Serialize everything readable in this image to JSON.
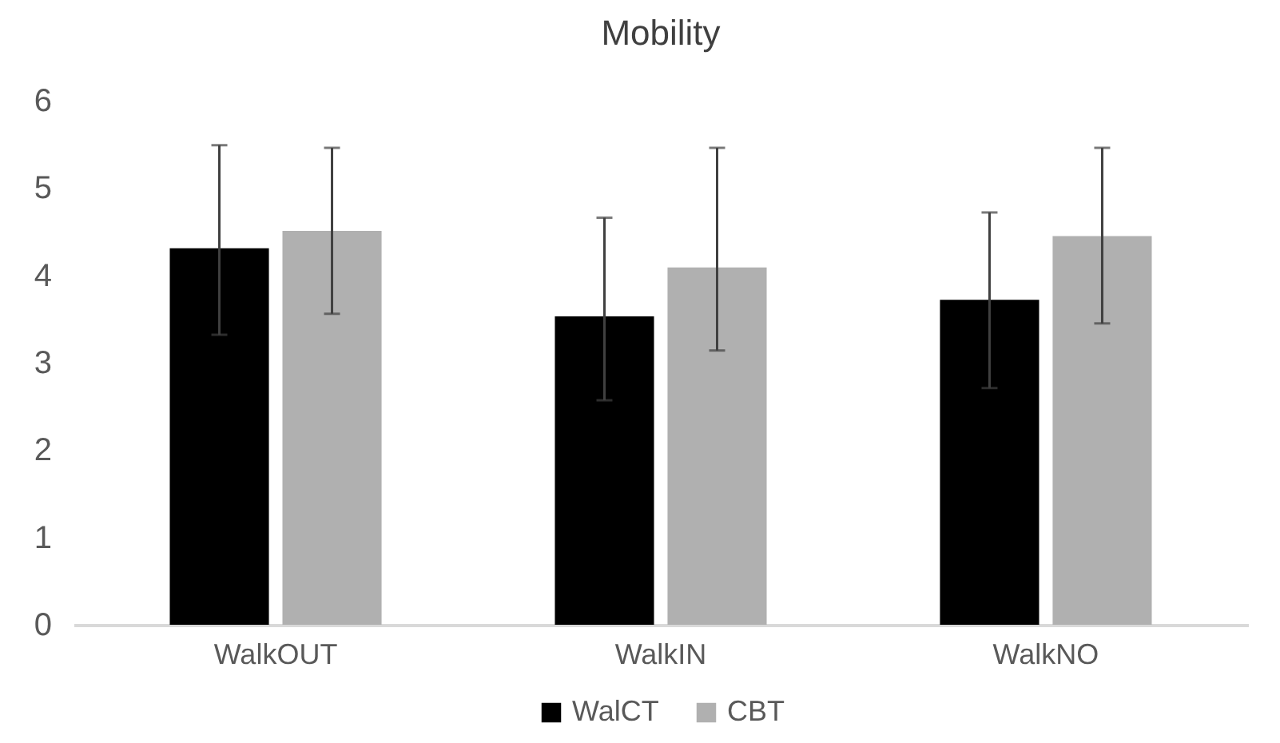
{
  "chart_data": {
    "type": "bar",
    "title": "Mobility",
    "categories": [
      "WalkOUT",
      "WalkIN",
      "WalkNO"
    ],
    "series": [
      {
        "name": "WalCT",
        "color": "#000000",
        "values": [
          4.31,
          3.53,
          3.72
        ],
        "errors": [
          [
            3.32,
            5.49
          ],
          [
            2.57,
            4.66
          ],
          [
            2.71,
            4.72
          ]
        ]
      },
      {
        "name": "CBT",
        "color": "#b0b0b0",
        "values": [
          4.51,
          4.09,
          4.45
        ],
        "errors": [
          [
            3.56,
            5.46
          ],
          [
            3.14,
            5.46
          ],
          [
            3.45,
            5.46
          ]
        ]
      }
    ],
    "ylim": [
      0,
      6
    ],
    "yticks": [
      0,
      1,
      2,
      3,
      4,
      5,
      6
    ],
    "grid": false,
    "legend": "bottom"
  }
}
